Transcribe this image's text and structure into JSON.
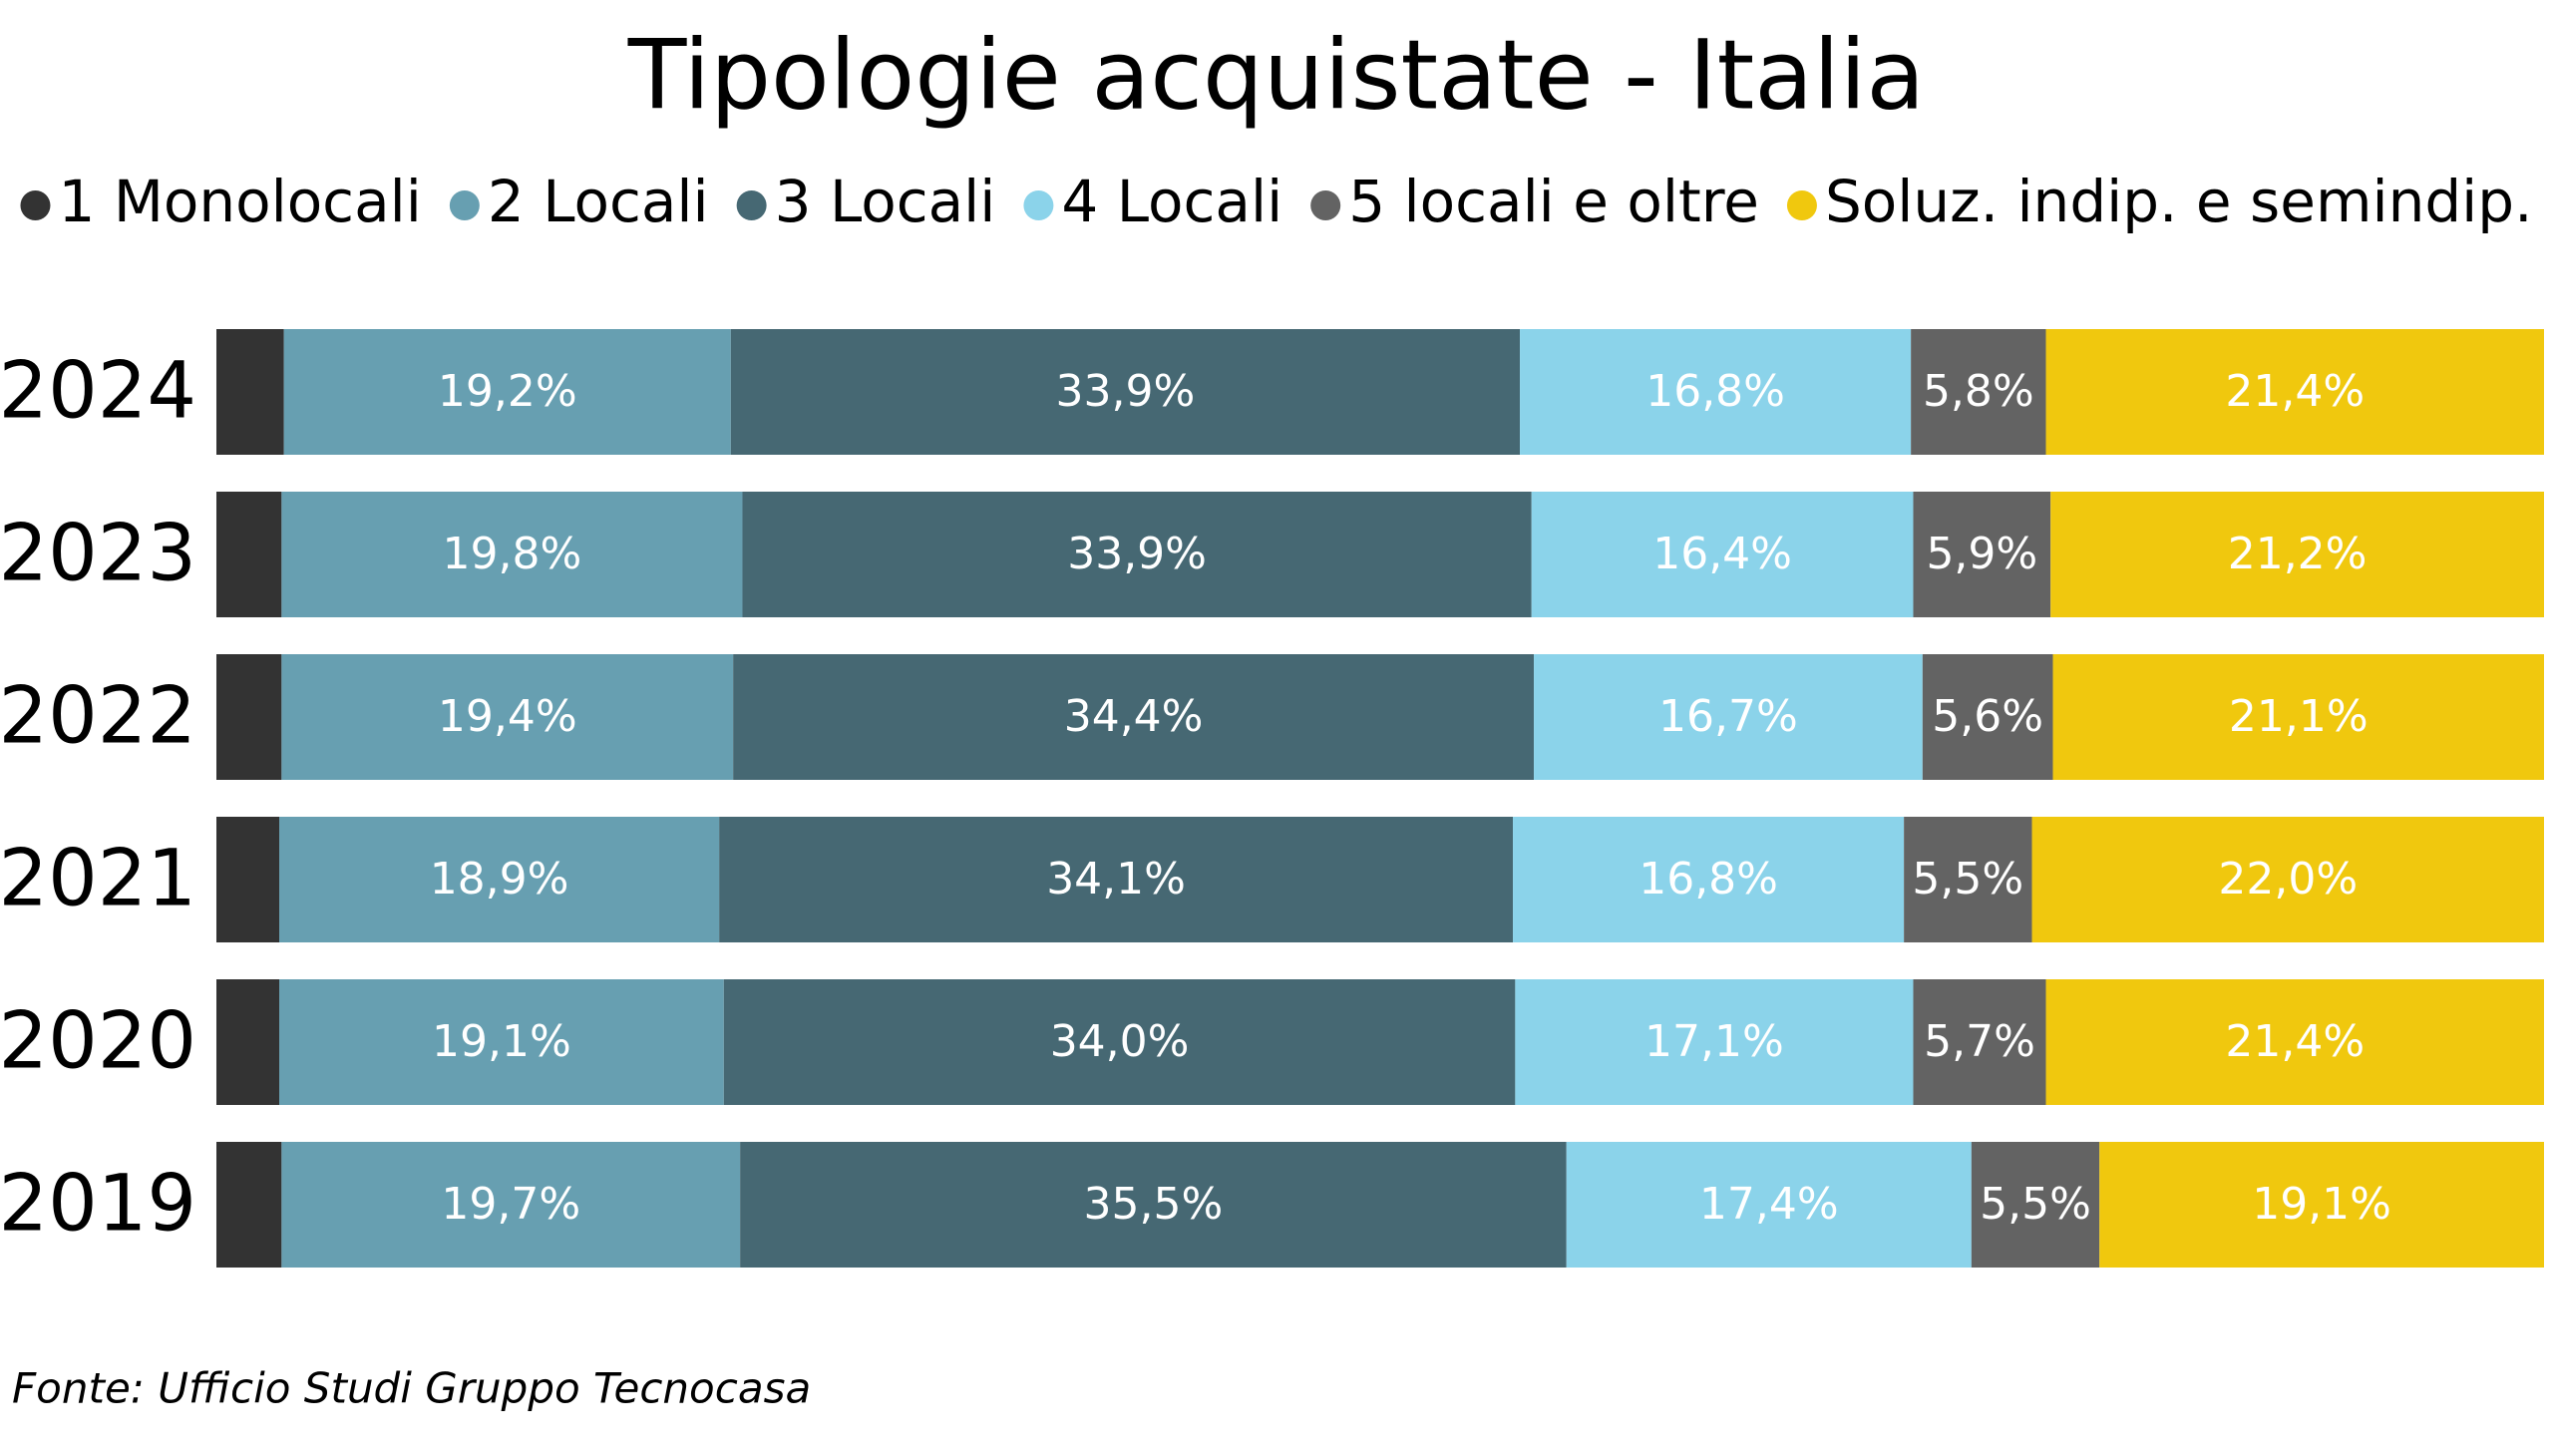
{
  "chart_data": {
    "type": "stacked-bar",
    "orientation": "horizontal",
    "title": "Tipologie acquistate - Italia",
    "categories": [
      "2024",
      "2023",
      "2022",
      "2021",
      "2020",
      "2019"
    ],
    "xlim": [
      0,
      100
    ],
    "legend": "top",
    "series": [
      {
        "name": "1 Monolocali",
        "color": "#333333",
        "values": [
          2.9,
          2.8,
          2.8,
          2.7,
          2.7,
          2.8
        ]
      },
      {
        "name": "2 Locali",
        "color": "#679fb1",
        "values": [
          19.2,
          19.8,
          19.4,
          18.9,
          19.1,
          19.7
        ],
        "value_labels": [
          "19,2%",
          "19,8%",
          "19,4%",
          "18,9%",
          "19,1%",
          "19,7%"
        ]
      },
      {
        "name": "3 Locali",
        "color": "#466873",
        "values": [
          33.9,
          33.9,
          34.4,
          34.1,
          34.0,
          35.5
        ],
        "value_labels": [
          "33,9%",
          "33,9%",
          "34,4%",
          "34,1%",
          "34,0%",
          "35,5%"
        ]
      },
      {
        "name": "4 Locali",
        "color": "#8bd3ea",
        "values": [
          16.8,
          16.4,
          16.7,
          16.8,
          17.1,
          17.4
        ],
        "value_labels": [
          "16,8%",
          "16,4%",
          "16,7%",
          "16,8%",
          "17,1%",
          "17,4%"
        ]
      },
      {
        "name": "5 locali e oltre",
        "color": "#636363",
        "values": [
          5.8,
          5.9,
          5.6,
          5.5,
          5.7,
          5.5
        ],
        "value_labels": [
          "5,8%",
          "5,9%",
          "5,6%",
          "5,5%",
          "5,7%",
          "5,5%"
        ]
      },
      {
        "name": "Soluz. indip. e semindip.",
        "color": "#f0c80e",
        "values": [
          21.4,
          21.2,
          21.1,
          22.0,
          21.4,
          19.1
        ],
        "value_labels": [
          "21,4%",
          "21,2%",
          "21,1%",
          "22,0%",
          "21,4%",
          "19,1%"
        ]
      }
    ],
    "source": "Fonte: Ufficio Studi Gruppo Tecnocasa"
  }
}
